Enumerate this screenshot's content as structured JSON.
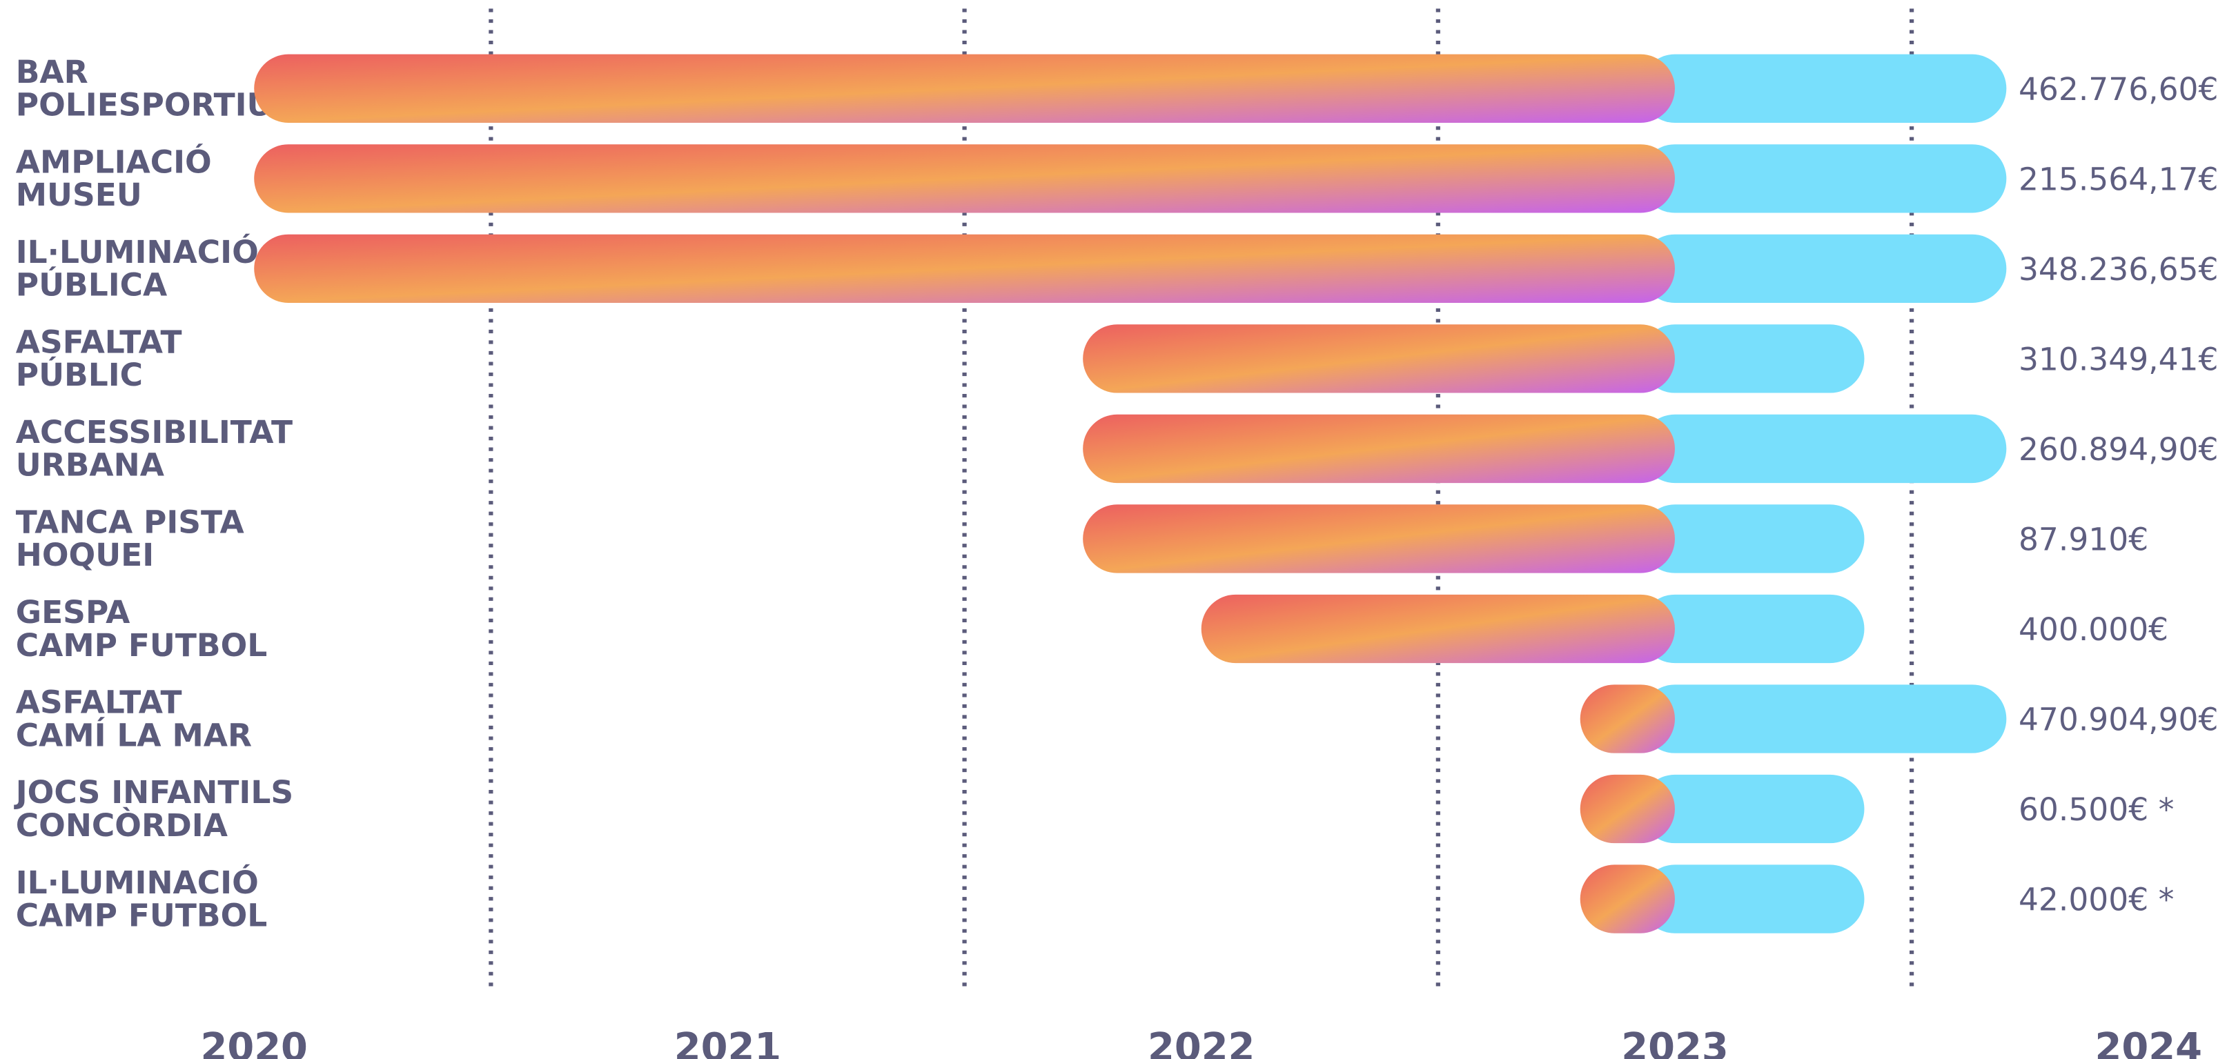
{
  "chart_data": {
    "type": "gantt",
    "categories": [
      [
        "BAR",
        "POLIESPORTIU"
      ],
      [
        "AMPLIACIÓ",
        "MUSEU"
      ],
      [
        "IL·LUMINACIÓ",
        "PÚBLICA"
      ],
      [
        "ASFALTAT",
        "PÚBLIC"
      ],
      [
        "ACCESSIBILITAT",
        "URBANA"
      ],
      [
        "TANCA PISTA",
        "HOQUEI"
      ],
      [
        "GESPA",
        "CAMP FUTBOL"
      ],
      [
        "ASFALTAT",
        "CAMÍ LA MAR"
      ],
      [
        "JOCS INFANTILS",
        "CONCÒRDIA"
      ],
      [
        "IL·LUMINACIÓ",
        "CAMP FUTBOL"
      ]
    ],
    "start": [
      2020,
      2020,
      2020,
      2021.75,
      2021.75,
      2021.75,
      2022,
      2022.8,
      2022.8,
      2022.8
    ],
    "split": [
      2023,
      2023,
      2023,
      2023,
      2023,
      2023,
      2023,
      2023,
      2023,
      2023
    ],
    "end": [
      2023.7,
      2023.7,
      2023.7,
      2023.4,
      2023.7,
      2023.4,
      2023.4,
      2023.7,
      2023.4,
      2023.4
    ],
    "amount_labels": [
      "462.776,60€",
      "215.564,17€",
      "348.236,65€",
      "310.349,41€",
      "260.894,90€",
      "87.910€",
      "400.000€",
      "470.904,90€",
      "60.500€ *",
      "42.000€ *"
    ],
    "xlim": [
      2020,
      2024
    ],
    "xticks": [
      2020,
      2021,
      2022,
      2023,
      2024
    ],
    "gridlines": [
      2020.5,
      2021.5,
      2022.5,
      2023.5
    ],
    "gradient_colors": [
      "#ec6060",
      "#f4a657",
      "#c563ec"
    ],
    "remaining_color": "#78dffc",
    "grid_color": "#5b5b7b"
  }
}
